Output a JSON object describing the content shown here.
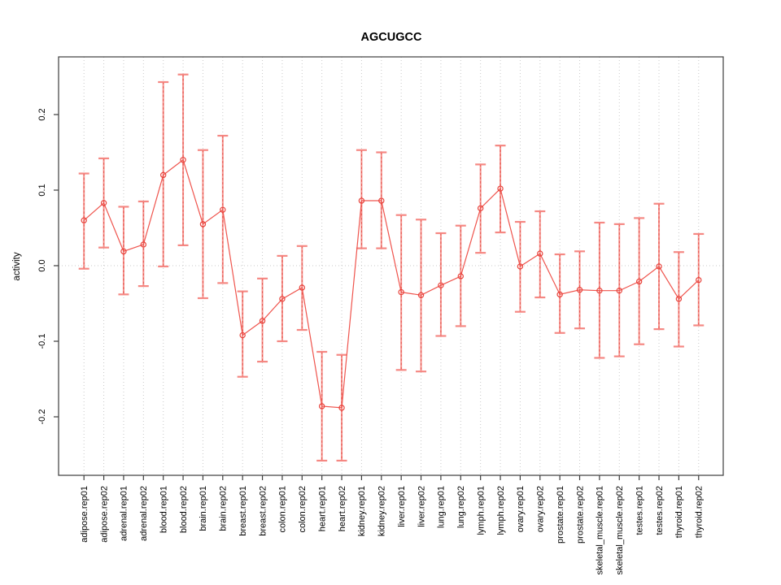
{
  "chart_data": {
    "type": "line",
    "title": "AGCUGCC",
    "xlabel": "",
    "ylabel": "activity",
    "legend_position": "none",
    "grid": "vertical-dotted-gridlines-and-dotted-zero-line",
    "ylim": [
      -0.277,
      0.277
    ],
    "yticks": [
      -0.2,
      -0.1,
      0.0,
      0.1,
      0.2
    ],
    "ytick_labels": [
      "-0.2",
      "-0.1",
      "0.0",
      "0.1",
      "0.2"
    ],
    "point_marker": "open-circle",
    "colors": {
      "series_line": "#ef544d",
      "point_stroke": "#e8423b",
      "errorbar_solid": "#f4827c",
      "errorbar_dash": "#e24840",
      "grid": "#c9c9c9",
      "axis_box": "#3c3c3c",
      "background": "#ffffff"
    },
    "categories": [
      "adipose.rep01",
      "adipose.rep02",
      "adrenal.rep01",
      "adrenal.rep02",
      "blood.rep01",
      "blood.rep02",
      "brain.rep01",
      "brain.rep02",
      "breast.rep01",
      "breast.rep02",
      "colon.rep01",
      "colon.rep02",
      "heart.rep01",
      "heart.rep02",
      "kidney.rep01",
      "kidney.rep02",
      "liver.rep01",
      "liver.rep02",
      "lung.rep01",
      "lung.rep02",
      "lymph.rep01",
      "lymph.rep02",
      "ovary.rep01",
      "ovary.rep02",
      "prostate.rep01",
      "prostate.rep02",
      "skeletal_muscle.rep01",
      "skeletal_muscle.rep02",
      "testes.rep01",
      "testes.rep02",
      "thyroid.rep01",
      "thyroid.rep02"
    ],
    "series": [
      {
        "name": "activity",
        "values": [
          0.06,
          0.083,
          0.019,
          0.028,
          0.12,
          0.14,
          0.055,
          0.074,
          -0.092,
          -0.073,
          -0.044,
          -0.029,
          -0.186,
          -0.188,
          0.086,
          0.086,
          -0.035,
          -0.039,
          -0.026,
          -0.014,
          0.076,
          0.102,
          -0.001,
          0.016,
          -0.038,
          -0.032,
          -0.033,
          -0.033,
          -0.021,
          -0.001,
          -0.044,
          -0.019
        ],
        "err_lo": [
          -0.004,
          0.024,
          -0.038,
          -0.027,
          -0.001,
          0.027,
          -0.043,
          -0.023,
          -0.147,
          -0.127,
          -0.1,
          -0.085,
          -0.258,
          -0.258,
          0.023,
          0.023,
          -0.138,
          -0.14,
          -0.093,
          -0.08,
          0.017,
          0.044,
          -0.061,
          -0.042,
          -0.089,
          -0.083,
          -0.122,
          -0.12,
          -0.104,
          -0.084,
          -0.107,
          -0.079
        ],
        "err_hi": [
          0.122,
          0.142,
          0.078,
          0.085,
          0.243,
          0.253,
          0.153,
          0.172,
          -0.034,
          -0.017,
          0.013,
          0.026,
          -0.114,
          -0.118,
          0.153,
          0.15,
          0.067,
          0.061,
          0.043,
          0.053,
          0.134,
          0.159,
          0.058,
          0.072,
          0.015,
          0.019,
          0.057,
          0.055,
          0.063,
          0.082,
          0.018,
          0.042
        ]
      }
    ]
  }
}
